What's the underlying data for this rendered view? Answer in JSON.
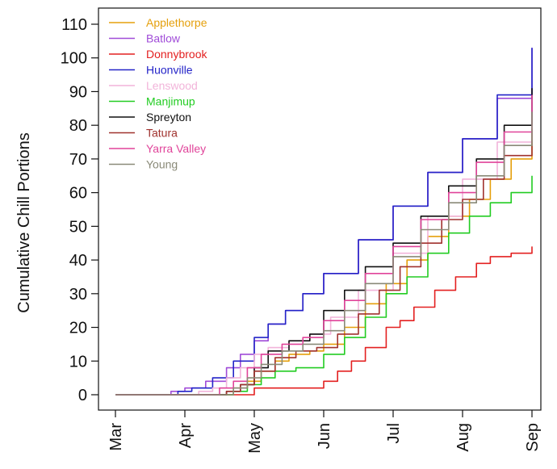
{
  "chart_data": {
    "type": "line",
    "title": "",
    "xlabel": "",
    "ylabel": "Cumulative Chill Portions",
    "x_ticks": [
      "Mar",
      "Apr",
      "May",
      "Jun",
      "Jul",
      "Aug",
      "Sep"
    ],
    "xlim": [
      0,
      6
    ],
    "ylim": [
      -2,
      112
    ],
    "y_ticks": [
      0,
      10,
      20,
      30,
      40,
      50,
      60,
      70,
      80,
      90,
      100,
      110
    ],
    "legend_position": "top-left",
    "grid": false,
    "series": [
      {
        "name": "Applethorpe",
        "color": "#E5A00D",
        "points": [
          [
            0,
            0
          ],
          [
            1.6,
            0
          ],
          [
            1.7,
            2
          ],
          [
            1.9,
            4
          ],
          [
            2.1,
            7
          ],
          [
            2.3,
            10
          ],
          [
            2.5,
            12
          ],
          [
            2.8,
            13
          ],
          [
            3.0,
            15
          ],
          [
            3.3,
            20
          ],
          [
            3.6,
            27
          ],
          [
            3.9,
            33
          ],
          [
            4.2,
            40
          ],
          [
            4.5,
            47
          ],
          [
            4.8,
            53
          ],
          [
            5.1,
            58
          ],
          [
            5.4,
            64
          ],
          [
            5.7,
            70
          ],
          [
            6.0,
            75.5
          ]
        ]
      },
      {
        "name": "Batlow",
        "color": "#A04CD8",
        "points": [
          [
            0,
            0
          ],
          [
            0.7,
            0
          ],
          [
            0.8,
            1
          ],
          [
            1.0,
            2
          ],
          [
            1.3,
            4
          ],
          [
            1.6,
            8
          ],
          [
            1.8,
            12
          ],
          [
            2.0,
            16
          ],
          [
            2.2,
            21
          ],
          [
            2.45,
            25
          ],
          [
            2.7,
            30
          ],
          [
            3.0,
            36
          ],
          [
            3.5,
            46
          ],
          [
            4.0,
            56
          ],
          [
            4.5,
            66
          ],
          [
            5.0,
            76
          ],
          [
            5.5,
            88
          ],
          [
            6.0,
            103
          ]
        ]
      },
      {
        "name": "Donnybrook",
        "color": "#E32020",
        "points": [
          [
            0,
            0
          ],
          [
            1.9,
            0
          ],
          [
            2.0,
            2
          ],
          [
            2.6,
            2
          ],
          [
            2.9,
            2
          ],
          [
            3.0,
            4
          ],
          [
            3.2,
            7
          ],
          [
            3.4,
            10
          ],
          [
            3.6,
            14
          ],
          [
            3.9,
            20
          ],
          [
            4.1,
            22
          ],
          [
            4.3,
            26
          ],
          [
            4.6,
            31
          ],
          [
            4.9,
            35
          ],
          [
            5.2,
            39
          ],
          [
            5.4,
            41
          ],
          [
            5.7,
            42
          ],
          [
            6.0,
            44
          ]
        ]
      },
      {
        "name": "Huonville",
        "color": "#2424C8",
        "points": [
          [
            0,
            0
          ],
          [
            0.8,
            0
          ],
          [
            0.9,
            1
          ],
          [
            1.1,
            2
          ],
          [
            1.4,
            5
          ],
          [
            1.7,
            10
          ],
          [
            2.0,
            17
          ],
          [
            2.2,
            21
          ],
          [
            2.45,
            25
          ],
          [
            2.7,
            30
          ],
          [
            3.0,
            36
          ],
          [
            3.5,
            46
          ],
          [
            4.0,
            56
          ],
          [
            4.5,
            66
          ],
          [
            5.0,
            76
          ],
          [
            5.5,
            89
          ],
          [
            6.0,
            103
          ]
        ]
      },
      {
        "name": "Lenswood",
        "color": "#F2B4DA",
        "points": [
          [
            0,
            0
          ],
          [
            1.0,
            0
          ],
          [
            1.2,
            1
          ],
          [
            1.4,
            2
          ],
          [
            1.6,
            5
          ],
          [
            1.8,
            8
          ],
          [
            2.0,
            12
          ],
          [
            2.2,
            14
          ],
          [
            2.5,
            16
          ],
          [
            2.8,
            18
          ],
          [
            3.1,
            23
          ],
          [
            3.5,
            31
          ],
          [
            4.0,
            42
          ],
          [
            4.5,
            53
          ],
          [
            5.0,
            64
          ],
          [
            5.5,
            75
          ],
          [
            6.0,
            87
          ]
        ]
      },
      {
        "name": "Manjimup",
        "color": "#22CC22",
        "points": [
          [
            0,
            0
          ],
          [
            1.5,
            0
          ],
          [
            1.7,
            1
          ],
          [
            1.9,
            3
          ],
          [
            2.1,
            5
          ],
          [
            2.3,
            7
          ],
          [
            2.6,
            8
          ],
          [
            2.8,
            8
          ],
          [
            3.0,
            12
          ],
          [
            3.3,
            17
          ],
          [
            3.6,
            23
          ],
          [
            3.9,
            30
          ],
          [
            4.2,
            35
          ],
          [
            4.5,
            42
          ],
          [
            4.8,
            48
          ],
          [
            5.1,
            53
          ],
          [
            5.4,
            57
          ],
          [
            5.7,
            60
          ],
          [
            6.0,
            65
          ]
        ]
      },
      {
        "name": "Spreyton",
        "color": "#111111",
        "points": [
          [
            0,
            0
          ],
          [
            1.5,
            0
          ],
          [
            1.6,
            1
          ],
          [
            1.8,
            3
          ],
          [
            2.0,
            8
          ],
          [
            2.2,
            13
          ],
          [
            2.5,
            16
          ],
          [
            2.8,
            18
          ],
          [
            3.0,
            25
          ],
          [
            3.3,
            31
          ],
          [
            3.6,
            38
          ],
          [
            4.0,
            45
          ],
          [
            4.4,
            53
          ],
          [
            4.8,
            62
          ],
          [
            5.2,
            70
          ],
          [
            5.6,
            80
          ],
          [
            6.0,
            91
          ]
        ]
      },
      {
        "name": "Tatura",
        "color": "#A0322E",
        "points": [
          [
            0,
            0
          ],
          [
            1.5,
            0
          ],
          [
            1.6,
            1
          ],
          [
            1.8,
            3
          ],
          [
            2.0,
            7
          ],
          [
            2.3,
            11
          ],
          [
            2.6,
            13
          ],
          [
            2.9,
            14
          ],
          [
            3.2,
            18
          ],
          [
            3.5,
            24
          ],
          [
            3.8,
            31
          ],
          [
            4.1,
            38
          ],
          [
            4.4,
            45
          ],
          [
            4.7,
            52
          ],
          [
            5.0,
            58
          ],
          [
            5.3,
            64
          ],
          [
            5.6,
            71
          ],
          [
            6.0,
            79
          ]
        ]
      },
      {
        "name": "Yarra Valley",
        "color": "#E0449A",
        "points": [
          [
            0,
            0
          ],
          [
            1.3,
            0
          ],
          [
            1.5,
            2
          ],
          [
            1.7,
            4
          ],
          [
            1.9,
            8
          ],
          [
            2.1,
            12
          ],
          [
            2.4,
            15
          ],
          [
            2.7,
            17
          ],
          [
            3.0,
            22
          ],
          [
            3.3,
            28
          ],
          [
            3.6,
            36
          ],
          [
            4.0,
            44
          ],
          [
            4.4,
            52
          ],
          [
            4.8,
            60
          ],
          [
            5.2,
            69
          ],
          [
            5.6,
            78
          ],
          [
            6.0,
            89
          ]
        ]
      },
      {
        "name": "Young",
        "color": "#8A8A78",
        "points": [
          [
            0,
            0
          ],
          [
            1.6,
            0
          ],
          [
            1.7,
            2
          ],
          [
            1.9,
            5
          ],
          [
            2.1,
            9
          ],
          [
            2.4,
            13
          ],
          [
            2.7,
            15
          ],
          [
            3.0,
            19
          ],
          [
            3.3,
            25
          ],
          [
            3.6,
            33
          ],
          [
            4.0,
            41
          ],
          [
            4.4,
            49
          ],
          [
            4.8,
            57
          ],
          [
            5.2,
            65
          ],
          [
            5.6,
            74
          ],
          [
            6.0,
            84
          ]
        ]
      }
    ]
  }
}
